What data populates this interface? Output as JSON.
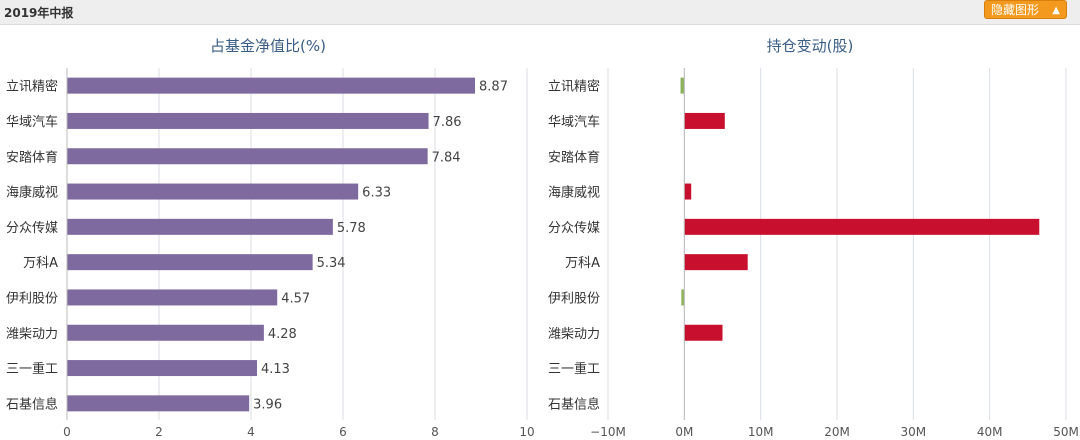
{
  "header": {
    "report_title": "2019年中报",
    "hide_button_label": "隐藏图形",
    "hide_button_icon": "caret-up-icon"
  },
  "colors": {
    "left_bar": "#7f6aa0",
    "increase": "#c8102e",
    "decrease": "#8cb35b",
    "title_text": "#3a5d85",
    "grid": "#d9dde6"
  },
  "chart_data": [
    {
      "type": "bar",
      "orientation": "horizontal",
      "title": "占基金净值比(%)",
      "categories": [
        "立讯精密",
        "华域汽车",
        "安踏体育",
        "海康威视",
        "分众传媒",
        "万科A",
        "伊利股份",
        "潍柴动力",
        "三一重工",
        "石基信息"
      ],
      "values": [
        8.87,
        7.86,
        7.84,
        6.33,
        5.78,
        5.34,
        4.57,
        4.28,
        4.13,
        3.96
      ],
      "xlim": [
        0,
        10
      ],
      "xticks": [
        "0",
        "2",
        "4",
        "6",
        "8",
        "10"
      ],
      "xtick_values": [
        0,
        2,
        4,
        6,
        8,
        10
      ],
      "data_labels": true,
      "grid": true
    },
    {
      "type": "bar",
      "orientation": "horizontal",
      "title": "持仓变动(股)",
      "categories": [
        "立讯精密",
        "华域汽车",
        "安踏体育",
        "海康威视",
        "分众传媒",
        "万科A",
        "伊利股份",
        "潍柴动力",
        "三一重工",
        "石基信息"
      ],
      "values": [
        -500000,
        5300000,
        0,
        900000,
        46500000,
        8300000,
        -300000,
        5000000,
        0,
        0
      ],
      "xlim": [
        -10000000,
        50000000
      ],
      "xticks": [
        "−10M",
        "0M",
        "10M",
        "20M",
        "30M",
        "40M",
        "50M"
      ],
      "xtick_values": [
        -10000000,
        0,
        10000000,
        20000000,
        30000000,
        40000000,
        50000000
      ],
      "data_labels": false,
      "grid": true
    }
  ]
}
